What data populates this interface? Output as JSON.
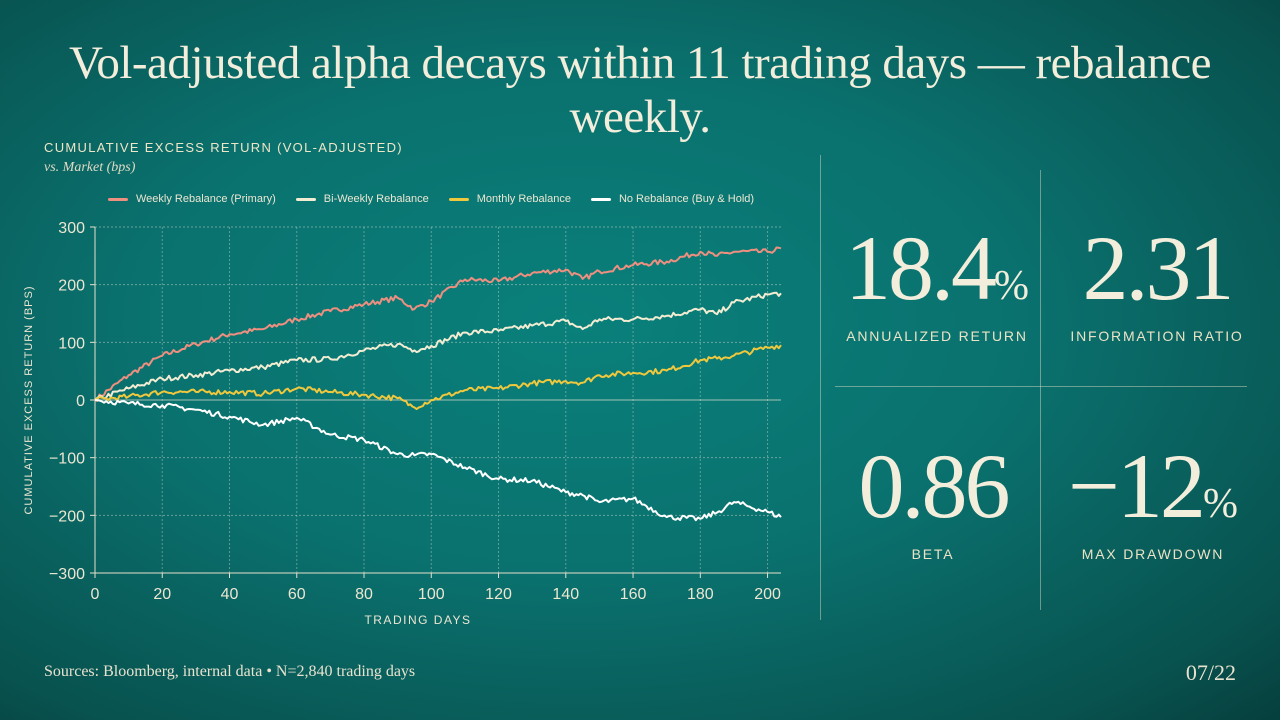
{
  "title": "Vol-adjusted alpha decays within 11 trading days — rebalance weekly.",
  "chart_data": {
    "type": "line",
    "title": "CUMULATIVE EXCESS RETURN (VOL-ADJUSTED)",
    "subtitle": "vs. Market (bps)",
    "xlabel": "TRADING DAYS",
    "ylabel": "CUMULATIVE EXCESS RETURN (BPS)",
    "xlim": [
      0,
      204
    ],
    "ylim": [
      -300,
      300
    ],
    "xticks": [
      "0",
      "20",
      "40",
      "60",
      "80",
      "100",
      "120",
      "140",
      "160",
      "180",
      "200"
    ],
    "yticks": [
      "300",
      "200",
      "100",
      "0",
      "−100",
      "−200",
      "−300"
    ],
    "grid": true,
    "legend": "top",
    "x": [
      0,
      10,
      20,
      30,
      40,
      50,
      60,
      70,
      80,
      90,
      95,
      100,
      110,
      120,
      130,
      140,
      145,
      150,
      160,
      170,
      180,
      185,
      190,
      200,
      204
    ],
    "series": [
      {
        "name": "Weekly Rebalance (Primary)",
        "color": "#ee8f80",
        "values": [
          0,
          43,
          77,
          97,
          114,
          123,
          140,
          154,
          166,
          177,
          158,
          171,
          209,
          206,
          220,
          226,
          210,
          223,
          234,
          240,
          257,
          250,
          257,
          257,
          263
        ]
      },
      {
        "name": "Bi-Weekly Rebalance",
        "color": "#f1ecd2",
        "values": [
          0,
          20,
          37,
          43,
          51,
          57,
          69,
          71,
          86,
          97,
          86,
          94,
          117,
          120,
          129,
          137,
          123,
          140,
          140,
          146,
          157,
          149,
          169,
          183,
          185
        ]
      },
      {
        "name": "Monthly Rebalance",
        "color": "#efc83e",
        "values": [
          0,
          6,
          14,
          14,
          14,
          11,
          20,
          14,
          9,
          3,
          -13,
          0,
          17,
          20,
          29,
          33,
          30,
          43,
          47,
          51,
          69,
          72,
          77,
          91,
          95
        ]
      },
      {
        "name": "No Rebalance (Buy & Hold)",
        "color": "#ffffff",
        "values": [
          0,
          -6,
          -9,
          -17,
          -29,
          -43,
          -31,
          -60,
          -69,
          -94,
          -96,
          -94,
          -117,
          -137,
          -140,
          -160,
          -165,
          -177,
          -171,
          -203,
          -206,
          -195,
          -177,
          -194,
          -203
        ]
      }
    ]
  },
  "stats": [
    {
      "value": "18.4",
      "unit": "%",
      "label": "ANNUALIZED RETURN"
    },
    {
      "value": "2.31",
      "unit": "",
      "label": "INFORMATION RATIO"
    },
    {
      "value": "0.86",
      "unit": "",
      "label": "BETA"
    },
    {
      "value": "−12",
      "unit": "%",
      "label": "MAX DRAWDOWN"
    }
  ],
  "footer": {
    "sources": "Sources: Bloomberg, internal data  •  N=2,840 trading days",
    "page": "07/22"
  }
}
